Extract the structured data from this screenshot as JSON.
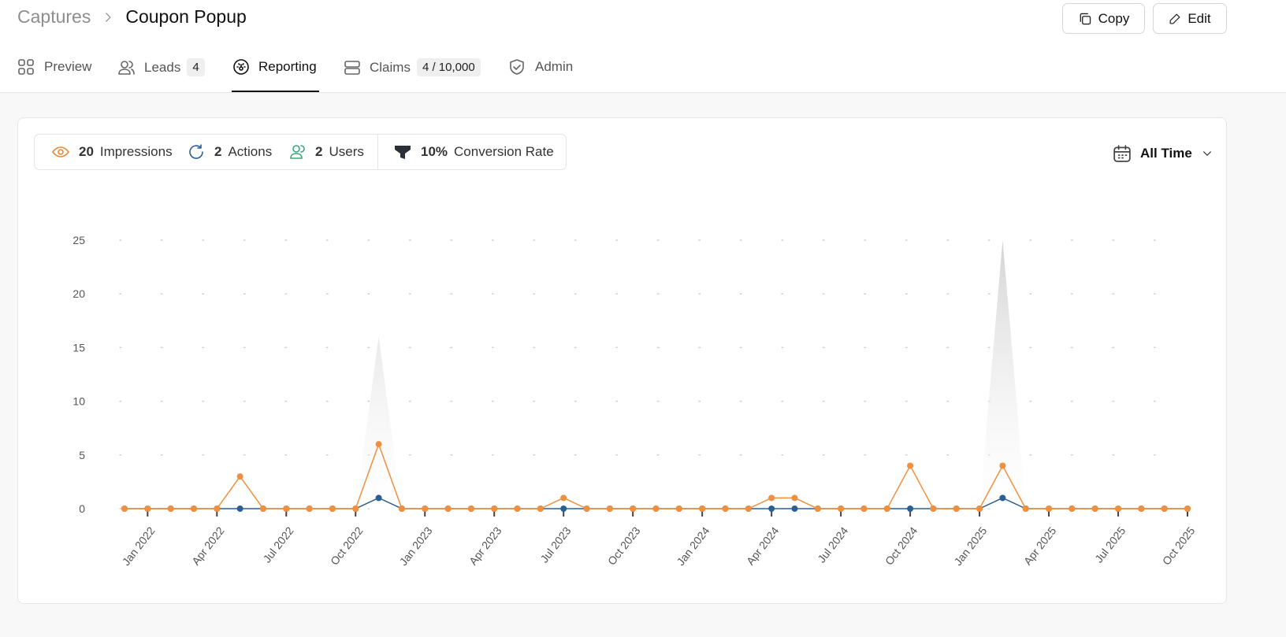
{
  "header": {
    "breadcrumb": "Captures",
    "title": "Coupon Popup",
    "buttons": [
      "Copy",
      "Edit"
    ]
  },
  "tabs": [
    {
      "label": "Preview"
    },
    {
      "label": "Leads",
      "badge": 4
    },
    {
      "label": "Reporting"
    },
    {
      "label": "Claims",
      "badge": "4 / 10,000"
    },
    {
      "label": "Admin"
    }
  ],
  "stats": [
    {
      "value": 20,
      "label": "Impressions"
    },
    {
      "value": 2,
      "label": "Actions"
    },
    {
      "value": 2,
      "label": "Users"
    },
    {
      "value": "10%",
      "label": "Conversion Rate"
    }
  ],
  "date_filter": "All Time",
  "chart_data": {
    "type": "line",
    "categories": [
      null,
      "Jan 2022",
      null,
      null,
      "Apr 2022",
      null,
      null,
      "Jul 2022",
      null,
      null,
      "Oct 2022",
      null,
      null,
      "Jan 2023",
      null,
      null,
      "Apr 2023",
      null,
      null,
      "Jul 2023",
      null,
      null,
      "Oct 2023",
      null,
      null,
      "Jan 2024",
      null,
      null,
      "Apr 2024",
      null,
      null,
      "Jul 2024",
      null,
      null,
      "Oct 2024",
      null,
      null,
      "Jan 2025",
      null,
      null,
      "Apr 2025",
      null,
      null,
      "Jul 2025",
      null,
      null,
      "Oct 2025"
    ],
    "series": [
      {
        "type": "area",
        "color": "#cfcfcf",
        "values": [
          0,
          0,
          0,
          0,
          0,
          0,
          0,
          0,
          0,
          0,
          0,
          16,
          0,
          0,
          0,
          0,
          0,
          0,
          0,
          0,
          0,
          0,
          0,
          0,
          0,
          0,
          0,
          0,
          0,
          0,
          0,
          0,
          0,
          0,
          0,
          0,
          0,
          0,
          25,
          0,
          0,
          0,
          0,
          0,
          0,
          0,
          0
        ]
      },
      {
        "type": "line",
        "color": "#2a5f94",
        "values": [
          0,
          0,
          0,
          0,
          0,
          0,
          0,
          0,
          0,
          0,
          0,
          1,
          0,
          0,
          0,
          0,
          0,
          0,
          0,
          0,
          0,
          0,
          0,
          0,
          0,
          0,
          0,
          0,
          0,
          0,
          0,
          0,
          0,
          0,
          0,
          0,
          0,
          0,
          1,
          0,
          0,
          0,
          0,
          0,
          0,
          0,
          0
        ]
      },
      {
        "type": "line",
        "color": "#f0903e",
        "values": [
          0,
          0,
          0,
          0,
          0,
          3,
          0,
          0,
          0,
          0,
          0,
          6,
          0,
          0,
          0,
          0,
          0,
          0,
          0,
          1,
          0,
          0,
          0,
          0,
          0,
          0,
          0,
          0,
          1,
          1,
          0,
          0,
          0,
          0,
          4,
          0,
          0,
          0,
          4,
          0,
          0,
          0,
          0,
          0,
          0,
          0,
          0
        ]
      }
    ],
    "ylim": [
      0,
      25
    ],
    "yticks": [
      0,
      5,
      10,
      15,
      20,
      25
    ],
    "grid": true
  }
}
